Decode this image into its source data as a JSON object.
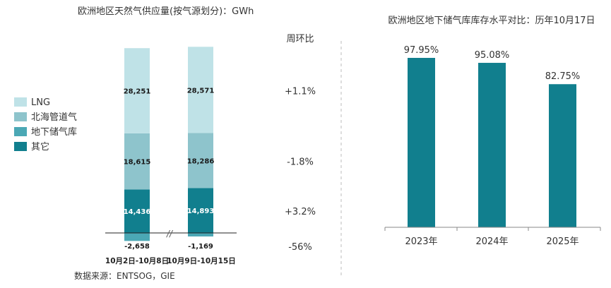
{
  "colors": {
    "LNG": "#bfe2e7",
    "北海管道气": "#8ec4cc",
    "地下储气库": "#4ba8b5",
    "其它": "#117f8e",
    "bar2": "#117f8e",
    "divider": "#bbbbbb"
  },
  "chart_data": [
    {
      "type": "bar",
      "stacked": true,
      "title": "欧洲地区天然气供应量(按气源划分)：GWh",
      "categories": [
        "10月2日-10月8日",
        "10月9日-10月15日"
      ],
      "series": [
        {
          "name": "其它",
          "values": [
            14436,
            14893
          ],
          "labels": [
            "14,436",
            "14,893"
          ]
        },
        {
          "name": "北海管道气",
          "values": [
            18615,
            18286
          ],
          "labels": [
            "18,615",
            "18,286"
          ]
        },
        {
          "name": "LNG",
          "values": [
            28251,
            28571
          ],
          "labels": [
            "28,251",
            "28,571"
          ]
        },
        {
          "name": "地下储气库",
          "values": [
            -2658,
            -1169
          ],
          "labels": [
            "-2,658",
            "-1,169"
          ]
        }
      ],
      "legend": [
        "LNG",
        "北海管道气",
        "地下储气库",
        "其它"
      ],
      "legend_position": "left",
      "wow_header": "周环比",
      "wow": [
        {
          "series": "LNG",
          "label": "+1.1%"
        },
        {
          "series": "北海管道气",
          "label": "-1.8%"
        },
        {
          "series": "其它",
          "label": "+3.2%"
        },
        {
          "series": "地下储气库",
          "label": "-56%"
        }
      ],
      "ylim": [
        -3000,
        63000
      ],
      "axis_break": "//",
      "source": "数据来源：ENTSOG，GIE"
    },
    {
      "type": "bar",
      "title": "欧洲地区地下储气库库存水平对比：历年10月17日",
      "categories": [
        "2023年",
        "2024年",
        "2025年"
      ],
      "values": [
        97.95,
        95.08,
        82.75
      ],
      "value_labels": [
        "97.95%",
        "95.08%",
        "82.75%"
      ],
      "ylim": [
        0,
        100
      ]
    }
  ]
}
